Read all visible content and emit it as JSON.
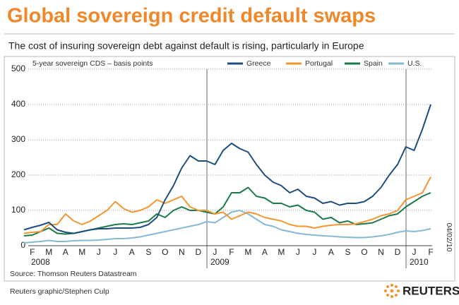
{
  "chart_data": {
    "type": "line",
    "title": "Global sovereign credit default swaps",
    "subtitle": "The cost of insuring sovereign debt against default is rising, particularly in Europe",
    "ylabel": "5-year sovereign CDS – basis points",
    "source": "Source: Thomson Reuters Datastream",
    "credit": "Reuters graphic/Stephen Culp",
    "brand": "REUTERS",
    "date_stamp": "04/02/10",
    "years": [
      "2008",
      "2009",
      "2010"
    ],
    "categories": [
      null,
      "F",
      null,
      "M",
      null,
      "A",
      null,
      "M",
      null,
      "J",
      null,
      "J",
      null,
      "A",
      null,
      "S",
      null,
      "O",
      null,
      "N",
      null,
      "D",
      null,
      "J",
      null,
      "F",
      null,
      "M",
      null,
      "A",
      null,
      "M",
      null,
      "J",
      null,
      "J",
      null,
      "A",
      null,
      "S",
      null,
      "O",
      null,
      "N",
      null,
      "D",
      null,
      "J",
      null,
      "F"
    ],
    "ylim": [
      0,
      500
    ],
    "yticks": [
      0,
      100,
      200,
      300,
      400,
      500
    ],
    "grid": true,
    "series": [
      {
        "name": "Greece",
        "color": "#1d4e7e",
        "values": [
          45,
          52,
          58,
          66,
          45,
          38,
          35,
          40,
          45,
          48,
          48,
          50,
          50,
          50,
          52,
          60,
          80,
          130,
          170,
          220,
          255,
          240,
          240,
          230,
          270,
          290,
          275,
          265,
          230,
          200,
          180,
          170,
          150,
          160,
          140,
          135,
          120,
          125,
          115,
          120,
          120,
          125,
          140,
          165,
          200,
          230,
          280,
          270,
          330,
          400
        ]
      },
      {
        "name": "Portugal",
        "color": "#f39530",
        "values": [
          35,
          38,
          40,
          60,
          60,
          90,
          70,
          60,
          70,
          85,
          100,
          125,
          105,
          95,
          100,
          110,
          130,
          120,
          130,
          140,
          110,
          100,
          100,
          90,
          95,
          75,
          85,
          95,
          90,
          80,
          75,
          70,
          60,
          55,
          55,
          50,
          55,
          58,
          60,
          60,
          62,
          68,
          75,
          85,
          90,
          100,
          130,
          140,
          150,
          195
        ]
      },
      {
        "name": "Spain",
        "color": "#1b7a48",
        "values": [
          28,
          30,
          40,
          50,
          35,
          33,
          35,
          40,
          45,
          50,
          55,
          60,
          62,
          60,
          65,
          70,
          90,
          80,
          100,
          110,
          100,
          100,
          95,
          90,
          110,
          150,
          150,
          165,
          140,
          135,
          120,
          120,
          110,
          115,
          100,
          95,
          75,
          80,
          65,
          70,
          60,
          62,
          65,
          75,
          85,
          90,
          110,
          125,
          140,
          150
        ]
      },
      {
        "name": "U.S.",
        "color": "#86b8d4",
        "values": [
          8,
          10,
          12,
          15,
          12,
          12,
          14,
          15,
          15,
          16,
          18,
          20,
          20,
          22,
          25,
          30,
          35,
          40,
          45,
          50,
          55,
          60,
          68,
          65,
          80,
          95,
          100,
          90,
          75,
          60,
          55,
          45,
          40,
          35,
          32,
          30,
          28,
          27,
          25,
          24,
          23,
          23,
          25,
          28,
          32,
          38,
          42,
          40,
          43,
          48
        ]
      }
    ]
  }
}
